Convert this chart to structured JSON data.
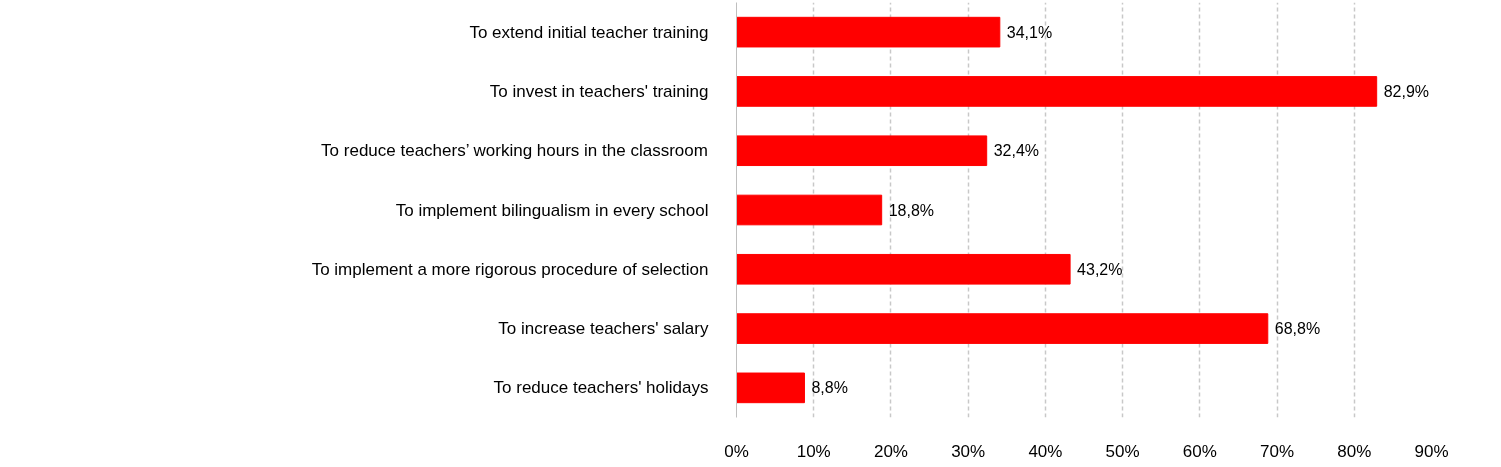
{
  "chart_data": {
    "type": "bar",
    "orientation": "horizontal",
    "categories": [
      "To extend initial teacher training",
      "To invest in teachers' training",
      "To reduce teachers’ working hours in the classroom",
      "To implement bilingualism in every school",
      "To implement a more rigorous procedure of selection",
      "To increase teachers' salary",
      "To reduce teachers' holidays"
    ],
    "values": [
      34.1,
      82.9,
      32.4,
      18.8,
      43.2,
      68.8,
      8.8
    ],
    "value_labels": [
      "34,1%",
      "82,9%",
      "32,4%",
      "18,8%",
      "43,2%",
      "68,8%",
      "8,8%"
    ],
    "color": "#ff0000",
    "xlim": [
      0,
      90
    ],
    "xticks": [
      {
        "value": 0,
        "label": "0%"
      },
      {
        "value": 10,
        "label": "10%"
      },
      {
        "value": 20,
        "label": "20%"
      },
      {
        "value": 30,
        "label": "30%"
      },
      {
        "value": 40,
        "label": "40%"
      },
      {
        "value": 50,
        "label": "50%"
      },
      {
        "value": 60,
        "label": "60%"
      },
      {
        "value": 70,
        "label": "70%"
      },
      {
        "value": 80,
        "label": "80%"
      },
      {
        "value": 90,
        "label": "90%"
      }
    ],
    "grid": "x"
  }
}
